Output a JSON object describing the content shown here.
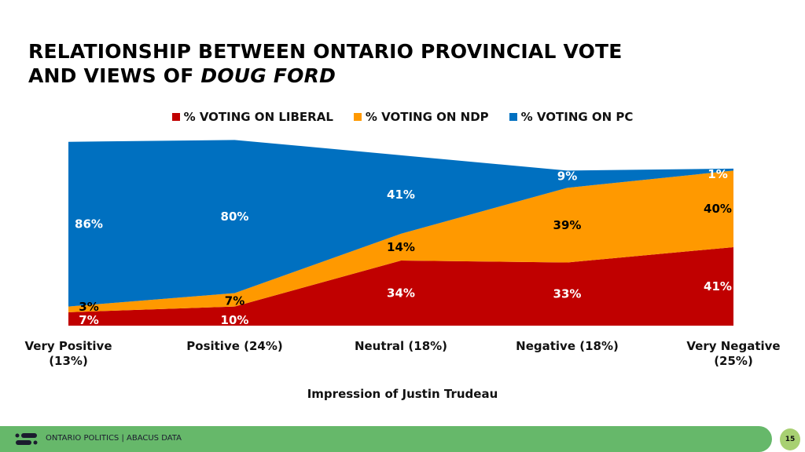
{
  "title": {
    "line1": "RELATIONSHIP BETWEEN ONTARIO PROVINCIAL VOTE",
    "line2_prefix": "AND VIEWS OF ",
    "line2_italic": "DOUG FORD"
  },
  "chart_data": {
    "type": "area",
    "stacked": true,
    "categories": [
      "Very Positive (13%)",
      "Positive (24%)",
      "Neutral (18%)",
      "Negative (18%)",
      "Very Negative (25%)"
    ],
    "category_lines": [
      [
        "Very Positive",
        "(13%)"
      ],
      [
        "Positive (24%)"
      ],
      [
        "Neutral (18%)"
      ],
      [
        "Negative (18%)"
      ],
      [
        "Very Negative",
        "(25%)"
      ]
    ],
    "xlabel": "Impression of Justin Trudeau",
    "ylabel": "",
    "ylim": [
      0,
      100
    ],
    "legend_position": "top",
    "grid": false,
    "series": [
      {
        "name": "% VOTING ON LIBERAL",
        "color": "#c00000",
        "label_color": "#ffffff",
        "values": [
          7,
          10,
          34,
          33,
          41
        ],
        "labels": [
          "7%",
          "10%",
          "34%",
          "33%",
          "41%"
        ]
      },
      {
        "name": "% VOTING ON NDP",
        "color": "#ff9900",
        "label_color": "#000000",
        "values": [
          3,
          7,
          14,
          39,
          40
        ],
        "labels": [
          "3%",
          "7%",
          "14%",
          "39%",
          "40%"
        ]
      },
      {
        "name": "% VOTING ON PC",
        "color": "#0070c0",
        "label_color": "#ffffff",
        "values": [
          86,
          80,
          41,
          9,
          1
        ],
        "labels": [
          "86%",
          "80%",
          "41%",
          "9%",
          "1%"
        ]
      }
    ]
  },
  "footer": {
    "text": "ONTARIO POLITICS  |  ABACUS DATA",
    "page": "15"
  }
}
